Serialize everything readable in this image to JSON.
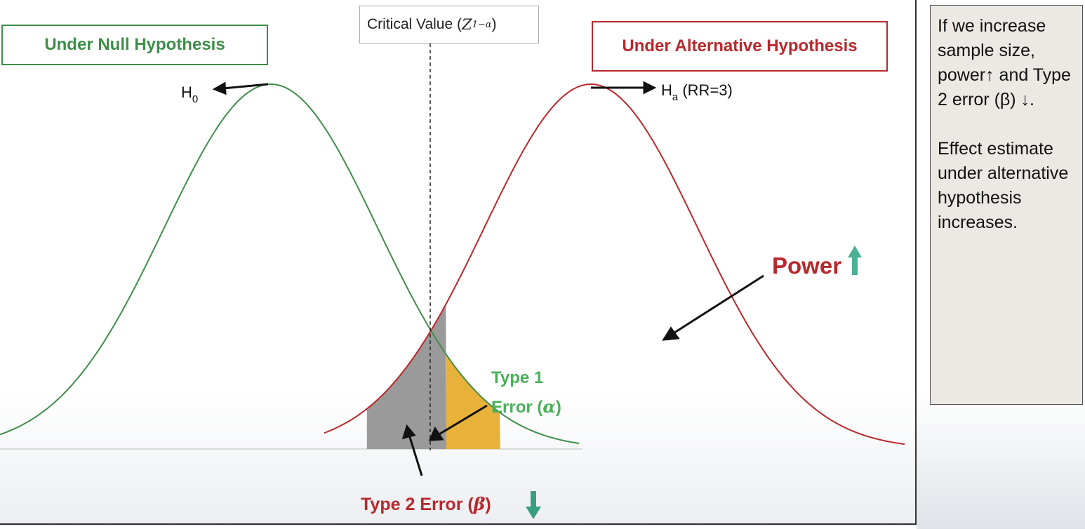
{
  "null_label": "Under Null Hypothesis",
  "alt_label": "Under Alternative Hypothesis",
  "critical_value_label": {
    "text": "Critical Value (",
    "symbol": "Z",
    "subscript": "1−α",
    "close": ")"
  },
  "h0_label": {
    "main": "H",
    "sub": "0"
  },
  "ha_label": {
    "main": "H",
    "sub": "a",
    "rest": " (RR=3)"
  },
  "power_label": "Power",
  "type1_label": {
    "line1": "Type 1",
    "line2": "Error (",
    "symbol": "α",
    "close": ")"
  },
  "type2_label": {
    "text": "Type 2 Error (",
    "symbol": "β",
    "close": ")"
  },
  "note": {
    "paragraph1": "If we increase sample size, power↑ and Type 2 error (β) ↓.",
    "paragraph2": "Effect estimate under alternative hypothesis increases."
  },
  "colors": {
    "null_curve": "#3e8e49",
    "alt_curve": "#b8282c",
    "type1_fill": "#e8b23a",
    "type2_fill": "#9a9a9a",
    "up_arrow": "#4caf97",
    "down_arrow": "#3a9e80"
  },
  "distributions": {
    "null": {
      "mean": 0,
      "sd": 1
    },
    "alternative": {
      "mean": 3,
      "sd": 1
    },
    "critical_value": 1.645
  }
}
